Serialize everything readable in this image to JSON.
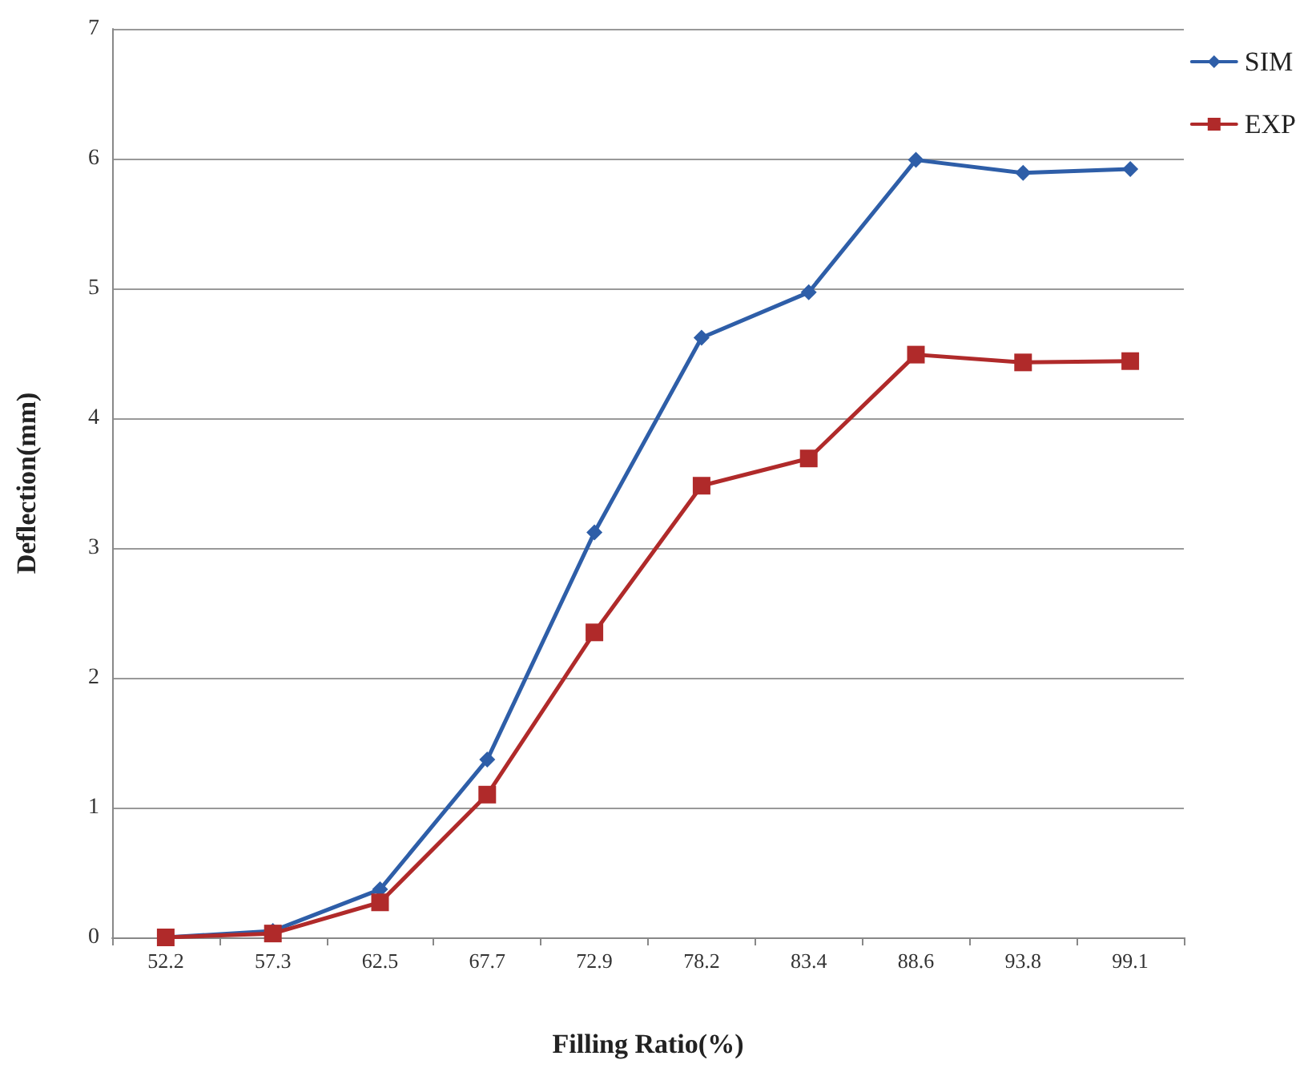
{
  "chart_data": {
    "type": "line",
    "xlabel": "Filling Ratio(%)",
    "ylabel": "Deflection(mm)",
    "categories": [
      "52.2",
      "57.3",
      "62.5",
      "67.7",
      "72.9",
      "78.2",
      "83.4",
      "88.6",
      "93.8",
      "99.1"
    ],
    "series": [
      {
        "name": "SIM",
        "color": "#2e5ea8",
        "marker": "diamond",
        "values": [
          0,
          0.05,
          0.37,
          1.37,
          3.12,
          4.62,
          4.97,
          5.99,
          5.89,
          5.92
        ]
      },
      {
        "name": "EXP",
        "color": "#b02a2a",
        "marker": "square",
        "values": [
          0,
          0.03,
          0.27,
          1.1,
          2.35,
          3.48,
          3.69,
          4.49,
          4.43,
          4.44
        ]
      }
    ],
    "ylim": [
      0,
      7
    ],
    "yticks": [
      0,
      1,
      2,
      3,
      4,
      5,
      6,
      7
    ],
    "grid": "y",
    "legend": "top right",
    "line_style": "solid"
  }
}
